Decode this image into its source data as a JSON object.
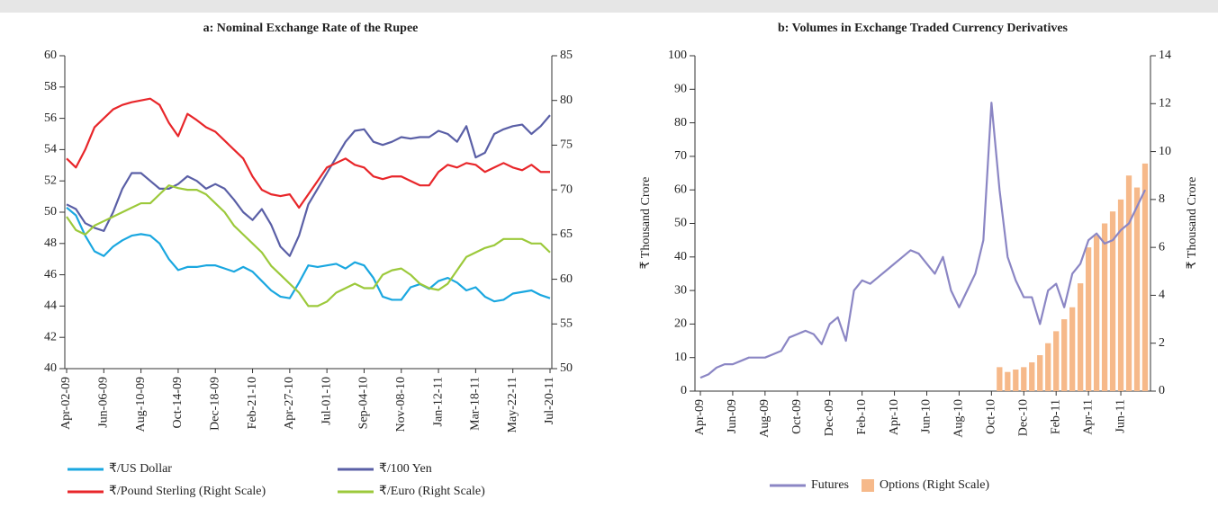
{
  "chart_data": [
    {
      "type": "line",
      "title": "a: Nominal Exchange Rate of the Rupee",
      "categories": [
        "Apr-02-09",
        null,
        null,
        null,
        "Jun-06-09",
        null,
        null,
        null,
        "Aug-10-09",
        null,
        null,
        null,
        "Oct-14-09",
        null,
        null,
        null,
        "Dec-18-09",
        null,
        null,
        null,
        "Feb-21-10",
        null,
        null,
        null,
        "Apr-27-10",
        null,
        null,
        null,
        "Jul-01-10",
        null,
        null,
        null,
        "Sep-04-10",
        null,
        null,
        null,
        "Nov-08-10",
        null,
        null,
        null,
        "Jan-12-11",
        null,
        null,
        null,
        "Mar-18-11",
        null,
        null,
        null,
        "May-22-11",
        null,
        null,
        null,
        "Jul-20-11"
      ],
      "ylim": [
        40,
        60
      ],
      "yticks": [
        40,
        42,
        44,
        46,
        48,
        50,
        52,
        54,
        56,
        58,
        60
      ],
      "y2lim": [
        50,
        85
      ],
      "y2ticks": [
        50,
        55,
        60,
        65,
        70,
        75,
        80,
        85
      ],
      "series": [
        {
          "name": "₹/US Dollar",
          "color": "#1aa7e0",
          "values": [
            50.3,
            49.8,
            48.5,
            47.5,
            47.2,
            47.8,
            48.2,
            48.5,
            48.6,
            48.5,
            48.0,
            47.0,
            46.3,
            46.5,
            46.5,
            46.6,
            46.6,
            46.4,
            46.2,
            46.5,
            46.2,
            45.6,
            45.0,
            44.6,
            44.5,
            45.5,
            46.6,
            46.5,
            46.6,
            46.7,
            46.4,
            46.8,
            46.6,
            45.8,
            44.6,
            44.4,
            44.4,
            45.2,
            45.4,
            45.1,
            45.6,
            45.8,
            45.5,
            45.0,
            45.2,
            44.6,
            44.3,
            44.4,
            44.8,
            44.9,
            45.0,
            44.7,
            44.5
          ]
        },
        {
          "name": "₹/100 Yen",
          "color": "#5a5fa6",
          "values": [
            50.5,
            50.2,
            49.3,
            49.0,
            48.8,
            50.0,
            51.5,
            52.5,
            52.5,
            52.0,
            51.5,
            51.5,
            51.8,
            52.3,
            52.0,
            51.5,
            51.8,
            51.5,
            50.8,
            50.0,
            49.5,
            50.2,
            49.2,
            47.8,
            47.2,
            48.5,
            50.5,
            51.5,
            52.5,
            53.5,
            54.5,
            55.2,
            55.3,
            54.5,
            54.3,
            54.5,
            54.8,
            54.7,
            54.8,
            54.8,
            55.2,
            55.0,
            54.5,
            55.5,
            53.5,
            53.8,
            55.0,
            55.3,
            55.5,
            55.6,
            55.0,
            55.5,
            56.2
          ]
        },
        {
          "name": "₹/Pound Sterling (Right Scale)",
          "color": "#e8262a",
          "axis": "y2",
          "values": [
            73.5,
            72.5,
            74.5,
            77,
            78,
            79,
            79.5,
            79.8,
            80,
            80.2,
            79.5,
            77.5,
            76,
            78.5,
            77.8,
            77,
            76.5,
            75.5,
            74.5,
            73.5,
            71.5,
            70,
            69.5,
            69.3,
            69.5,
            68,
            69.5,
            71,
            72.5,
            73,
            73.5,
            72.8,
            72.5,
            71.5,
            71.2,
            71.5,
            71.5,
            71,
            70.5,
            70.5,
            72,
            72.8,
            72.5,
            73,
            72.8,
            72,
            72.5,
            73,
            72.5,
            72.2,
            72.8,
            72,
            72
          ]
        },
        {
          "name": "₹/Euro (Right Scale)",
          "color": "#9cc93b",
          "axis": "y2",
          "values": [
            67,
            65.5,
            65,
            66,
            66.5,
            67,
            67.5,
            68,
            68.5,
            68.5,
            69.5,
            70.5,
            70.2,
            70,
            70,
            69.5,
            68.5,
            67.5,
            66,
            65,
            64,
            63,
            61.5,
            60.5,
            59.5,
            58.5,
            57,
            57,
            57.5,
            58.5,
            59,
            59.5,
            59,
            59,
            60.5,
            61,
            61.2,
            60.5,
            59.5,
            59,
            58.8,
            59.5,
            61,
            62.5,
            63,
            63.5,
            63.8,
            64.5,
            64.5,
            64.5,
            64,
            64,
            63
          ]
        }
      ]
    },
    {
      "type": "combo",
      "title": "b: Volumes in Exchange Traded Currency Derivatives",
      "y_label": "₹ Thousand Crore",
      "y2_label": "₹ Thousand Crore",
      "categories": [
        "Apr-09",
        null,
        null,
        null,
        "Jun-09",
        null,
        null,
        null,
        "Aug-09",
        null,
        null,
        null,
        "Oct-09",
        null,
        null,
        null,
        "Dec-09",
        null,
        null,
        null,
        "Feb-10",
        null,
        null,
        null,
        "Apr-10",
        null,
        null,
        null,
        "Jun-10",
        null,
        null,
        null,
        "Aug-10",
        null,
        null,
        null,
        "Oct-10",
        null,
        null,
        null,
        "Dec-10",
        null,
        null,
        null,
        "Feb-11",
        null,
        null,
        null,
        "Apr-11",
        null,
        null,
        null,
        "Jun-11",
        null,
        null,
        null
      ],
      "ylim": [
        0,
        100
      ],
      "yticks": [
        0,
        10,
        20,
        30,
        40,
        50,
        60,
        70,
        80,
        90,
        100
      ],
      "y2lim": [
        0,
        14
      ],
      "y2ticks": [
        0,
        2,
        4,
        6,
        8,
        10,
        12,
        14
      ],
      "series": [
        {
          "name": "Futures",
          "type": "line",
          "color": "#8b86c4",
          "values": [
            4,
            5,
            7,
            8,
            8,
            9,
            10,
            10,
            10,
            11,
            12,
            16,
            17,
            18,
            17,
            14,
            20,
            22,
            15,
            30,
            33,
            32,
            34,
            36,
            38,
            40,
            42,
            41,
            38,
            35,
            40,
            30,
            25,
            30,
            35,
            45,
            86,
            60,
            40,
            33,
            28,
            28,
            20,
            30,
            32,
            25,
            35,
            38,
            45,
            47,
            44,
            45,
            48,
            50,
            55,
            60
          ]
        },
        {
          "name": "Options (Right Scale)",
          "type": "bar",
          "color": "#f6b98a",
          "axis": "y2",
          "values": [
            null,
            null,
            null,
            null,
            null,
            null,
            null,
            null,
            null,
            null,
            null,
            null,
            null,
            null,
            null,
            null,
            null,
            null,
            null,
            null,
            null,
            null,
            null,
            null,
            null,
            null,
            null,
            null,
            null,
            null,
            null,
            null,
            null,
            null,
            null,
            null,
            null,
            1,
            0.8,
            0.9,
            1.0,
            1.2,
            1.5,
            2,
            2.5,
            3,
            3.5,
            4.5,
            6,
            6.5,
            7,
            7.5,
            8,
            9,
            8.5,
            9.5
          ]
        }
      ]
    }
  ]
}
